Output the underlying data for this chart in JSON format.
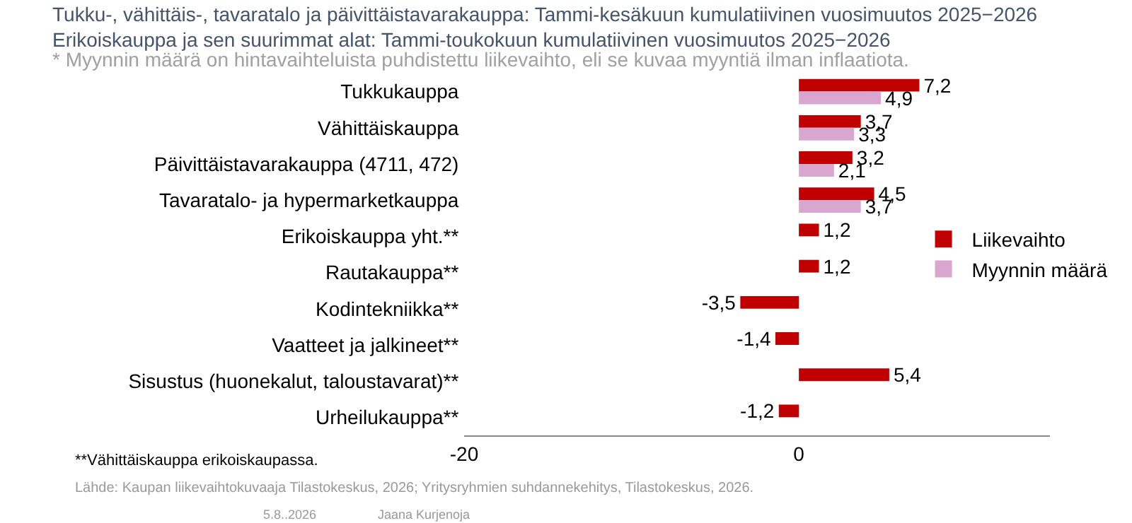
{
  "chart_data": {
    "type": "bar",
    "orientation": "horizontal",
    "title": "Tukku-, vähittäis-, tavaratalo ja päivittäistavarakauppa: Tammi-kesäkuun kumulatiivinen vuosimuutos 2025−2026\nErikoiskauppa ja sen suurimmat alat: Tammi-toukokuun kumulatiivinen vuosimuutos 2025−2026",
    "subtitle": "* Myynnin määrä on hintavaihteluista puhdistettu liikevaihto, eli se kuvaa myyntiä ilman inflaatiota.",
    "categories": [
      "Tukkukauppa",
      "Vähittäiskauppa",
      "Päivittäistavarakauppa (4711, 472)",
      "Tavaratalo- ja hypermarketkauppa",
      "Erikoiskauppa yht.**",
      "Rautakauppa**",
      "Kodintekniikka**",
      "Vaatteet ja jalkineet**",
      "Sisustus (huonekalut, taloustavarat)**",
      "Urheilukauppa**"
    ],
    "series": [
      {
        "name": "Liikevaihto",
        "color": "#c00000",
        "values": [
          7.2,
          3.7,
          3.2,
          4.5,
          1.2,
          1.2,
          -3.5,
          -1.4,
          5.4,
          -1.2
        ],
        "value_labels": [
          "7,2",
          "3,7",
          "3,2",
          "4,5",
          "1,2",
          "1,2",
          "-3,5",
          "-1,4",
          "5,4",
          "-1,2"
        ]
      },
      {
        "name": "Myynnin määrä",
        "color": "#d9a6d0",
        "values": [
          4.9,
          3.3,
          2.1,
          3.7,
          null,
          null,
          null,
          null,
          null,
          null
        ],
        "value_labels": [
          "4,9",
          "3,3",
          "2,1",
          "3,7",
          null,
          null,
          null,
          null,
          null,
          null
        ]
      }
    ],
    "xlim": [
      -20,
      15
    ],
    "xticks": [
      -20,
      0
    ],
    "grid": false,
    "legend": "right",
    "annotations": [
      "**Vähittäiskauppa erikoiskaupassa.",
      "Lähde: Kaupan liikevaihtokuvaaja Tilastokeskus, 2026; Yritysryhmien suhdannekehitys, Tilastokeskus, 2026.",
      "5.8..2026",
      "Jaana Kurjenoja"
    ]
  }
}
